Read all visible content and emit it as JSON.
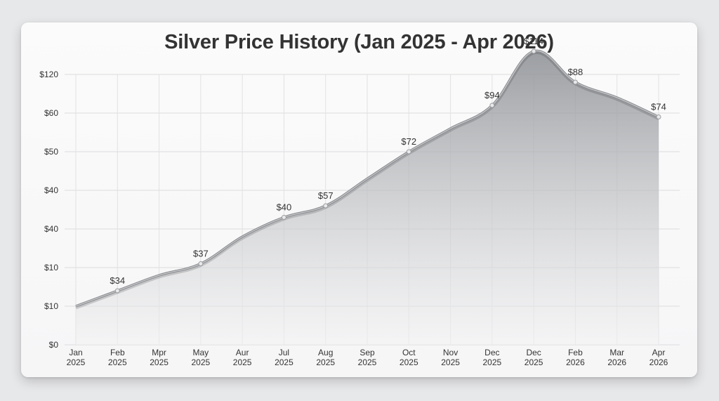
{
  "chart_data": {
    "type": "area",
    "title": "Silver Price History (Jan 2025 - Apr 2026)",
    "xlabel": "",
    "ylabel": "",
    "grid": true,
    "y_tick_labels": [
      "$0",
      "$10",
      "$10",
      "$40",
      "$40",
      "$50",
      "$60",
      "$120"
    ],
    "categories": [
      [
        "Jan",
        "2025"
      ],
      [
        "Feb",
        "2025"
      ],
      [
        "Mpr",
        "2025"
      ],
      [
        "May",
        "2025"
      ],
      [
        "Aur",
        "2025"
      ],
      [
        "Jul",
        "2025"
      ],
      [
        "Aug",
        "2025"
      ],
      [
        "Sep",
        "2025"
      ],
      [
        "Oct",
        "2025"
      ],
      [
        "Nov",
        "2025"
      ],
      [
        "Dec",
        "2025"
      ],
      [
        "Dec",
        "2025"
      ],
      [
        "Feb",
        "2026"
      ],
      [
        "Mar",
        "2026"
      ],
      [
        "Apr",
        "2026"
      ]
    ],
    "x": [
      0,
      1,
      2,
      3,
      4,
      5,
      6,
      7,
      8,
      9,
      10,
      11,
      12,
      13,
      14
    ],
    "values_axis_position": [
      1.0,
      1.4,
      1.8,
      2.1,
      2.8,
      3.3,
      3.6,
      4.3,
      5.0,
      5.6,
      6.2,
      7.6,
      6.8,
      6.4,
      5.9
    ],
    "data_labels": [
      {
        "x": 1,
        "text": "$34"
      },
      {
        "x": 3,
        "text": "$37"
      },
      {
        "x": 5,
        "text": "$40"
      },
      {
        "x": 6,
        "text": "$57"
      },
      {
        "x": 8,
        "text": "$72"
      },
      {
        "x": 10,
        "text": "$94"
      },
      {
        "x": 11,
        "text": "$114"
      },
      {
        "x": 12,
        "text": "$88"
      },
      {
        "x": 14,
        "text": "$74"
      }
    ],
    "colors": {
      "line": "#8e9094",
      "fill_top": "#8a8d92",
      "fill_bottom": "#f2f2f3"
    }
  }
}
